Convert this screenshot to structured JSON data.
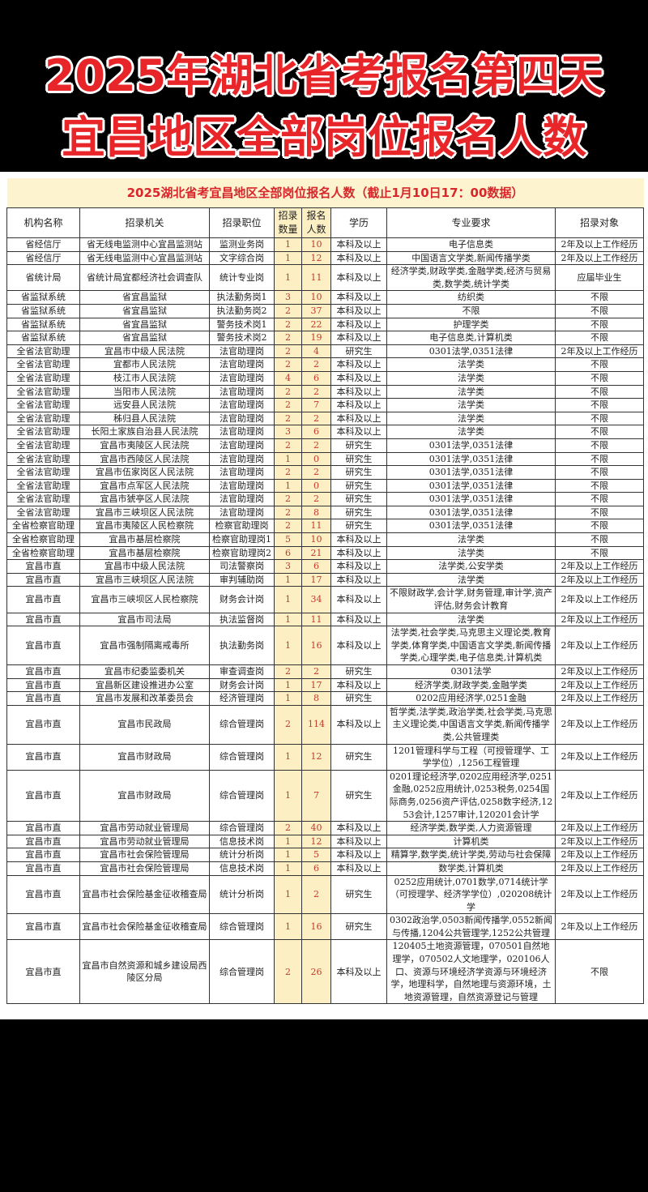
{
  "banner": {
    "line1": "2025年湖北省考报名第四天",
    "line2": "宜昌地区全部岗位报名人数"
  },
  "table": {
    "title": "2025湖北省考宜昌地区全部岗位报名人数（截止1月10日17：00数据）",
    "headers": [
      "机构名称",
      "招录机关",
      "招录职位",
      "招录数量",
      "报名人数",
      "学历",
      "专业要求",
      "招录对象"
    ],
    "rows": [
      [
        "省经信厅",
        "省无线电监测中心宜昌监测站",
        "监测业务岗",
        "1",
        "10",
        "本科及以上",
        "电子信息类",
        "2年及以上工作经历"
      ],
      [
        "省经信厅",
        "省无线电监测中心宜昌监测站",
        "文字综合岗",
        "1",
        "12",
        "本科及以上",
        "中国语言文学类,新闻传播学类",
        "2年及以上工作经历"
      ],
      [
        "省统计局",
        "省统计局宜都经济社会调查队",
        "统计专业岗",
        "1",
        "11",
        "本科及以上",
        "经济学类,财政学类,金融学类,经济与贸易类,数学类,统计学类",
        "应届毕业生"
      ],
      [
        "省监狱系统",
        "省宜昌监狱",
        "执法勤务岗1",
        "3",
        "10",
        "本科及以上",
        "纺织类",
        "不限"
      ],
      [
        "省监狱系统",
        "省宜昌监狱",
        "执法勤务岗2",
        "2",
        "37",
        "本科及以上",
        "不限",
        "不限"
      ],
      [
        "省监狱系统",
        "省宜昌监狱",
        "警务技术岗1",
        "2",
        "22",
        "本科及以上",
        "护理学类",
        "不限"
      ],
      [
        "省监狱系统",
        "省宜昌监狱",
        "警务技术岗2",
        "2",
        "19",
        "本科及以上",
        "电子信息类,计算机类",
        "不限"
      ],
      [
        "全省法官助理",
        "宜昌市中级人民法院",
        "法官助理岗",
        "2",
        "4",
        "研究生",
        "0301法学,0351法律",
        "2年及以上工作经历"
      ],
      [
        "全省法官助理",
        "宜都市人民法院",
        "法官助理岗",
        "2",
        "2",
        "本科及以上",
        "法学类",
        "不限"
      ],
      [
        "全省法官助理",
        "枝江市人民法院",
        "法官助理岗",
        "4",
        "6",
        "本科及以上",
        "法学类",
        "不限"
      ],
      [
        "全省法官助理",
        "当阳市人民法院",
        "法官助理岗",
        "2",
        "2",
        "本科及以上",
        "法学类",
        "不限"
      ],
      [
        "全省法官助理",
        "远安县人民法院",
        "法官助理岗",
        "2",
        "7",
        "本科及以上",
        "法学类",
        "不限"
      ],
      [
        "全省法官助理",
        "秭归县人民法院",
        "法官助理岗",
        "2",
        "2",
        "本科及以上",
        "法学类",
        "不限"
      ],
      [
        "全省法官助理",
        "长阳土家族自治县人民法院",
        "法官助理岗",
        "3",
        "6",
        "本科及以上",
        "法学类",
        "不限"
      ],
      [
        "全省法官助理",
        "宜昌市夷陵区人民法院",
        "法官助理岗",
        "2",
        "2",
        "研究生",
        "0301法学,0351法律",
        "不限"
      ],
      [
        "全省法官助理",
        "宜昌市西陵区人民法院",
        "法官助理岗",
        "1",
        "0",
        "研究生",
        "0301法学,0351法律",
        "不限"
      ],
      [
        "全省法官助理",
        "宜昌市伍家岗区人民法院",
        "法官助理岗",
        "2",
        "2",
        "研究生",
        "0301法学,0351法律",
        "不限"
      ],
      [
        "全省法官助理",
        "宜昌市点军区人民法院",
        "法官助理岗",
        "1",
        "0",
        "研究生",
        "0301法学,0351法律",
        "不限"
      ],
      [
        "全省法官助理",
        "宜昌市猇亭区人民法院",
        "法官助理岗",
        "2",
        "2",
        "研究生",
        "0301法学,0351法律",
        "不限"
      ],
      [
        "全省法官助理",
        "宜昌市三峡坝区人民法院",
        "法官助理岗",
        "2",
        "8",
        "研究生",
        "0301法学,0351法律",
        "不限"
      ],
      [
        "全省检察官助理",
        "宜昌市夷陵区人民检察院",
        "检察官助理岗",
        "2",
        "11",
        "研究生",
        "0301法学,0351法律",
        "不限"
      ],
      [
        "全省检察官助理",
        "宜昌市基层检察院",
        "检察官助理岗1",
        "5",
        "10",
        "本科及以上",
        "法学类",
        "不限"
      ],
      [
        "全省检察官助理",
        "宜昌市基层检察院",
        "检察官助理岗2",
        "6",
        "21",
        "本科及以上",
        "法学类",
        "不限"
      ],
      [
        "宜昌市直",
        "宜昌市中级人民法院",
        "司法警察岗",
        "3",
        "6",
        "本科及以上",
        "法学类,公安学类",
        "2年及以上工作经历"
      ],
      [
        "宜昌市直",
        "宜昌市三峡坝区人民法院",
        "审判辅助岗",
        "1",
        "17",
        "本科及以上",
        "法学类",
        "2年及以上工作经历"
      ],
      [
        "宜昌市直",
        "宜昌市三峡坝区人民检察院",
        "财务会计岗",
        "1",
        "34",
        "本科及以上",
        "不限财政学,会计学,财务管理,审计学,资产评估,财务会计教育",
        "2年及以上工作经历"
      ],
      [
        "宜昌市直",
        "宜昌市司法局",
        "执法监督岗",
        "1",
        "11",
        "本科及以上",
        "法学类",
        "2年及以上工作经历"
      ],
      [
        "宜昌市直",
        "宜昌市强制隔离戒毒所",
        "执法勤务岗",
        "1",
        "16",
        "本科及以上",
        "法学类,社会学类,马克思主义理论类,教育学类,体育学类,中国语言文学类,新闻传播学类,心理学类,电子信息类,计算机类",
        "2年及以上工作经历"
      ],
      [
        "宜昌市直",
        "宜昌市纪委监委机关",
        "审查调查岗",
        "2",
        "2",
        "研究生",
        "0301法学",
        "2年及以上工作经历"
      ],
      [
        "宜昌市直",
        "宜昌新区建设推进办公室",
        "财务会计岗",
        "1",
        "17",
        "本科及以上",
        "经济学类,财政学类,金融学类",
        "2年及以上工作经历"
      ],
      [
        "宜昌市直",
        "宜昌市发展和改革委员会",
        "经济管理岗",
        "1",
        "8",
        "研究生",
        "0202应用经济学,0251金融",
        "2年及以上工作经历"
      ],
      [
        "宜昌市直",
        "宜昌市民政局",
        "综合管理岗",
        "2",
        "114",
        "本科及以上",
        "哲学类,法学类,政治学类,社会学类,马克思主义理论类,中国语言文学类,新闻传播学类,公共管理类",
        "2年及以上工作经历"
      ],
      [
        "宜昌市直",
        "宜昌市财政局",
        "综合管理岗",
        "1",
        "12",
        "研究生",
        "1201管理科学与工程（可授管理学、工学学位）,1256工程管理",
        "2年及以上工作经历"
      ],
      [
        "宜昌市直",
        "宜昌市财政局",
        "综合管理岗",
        "1",
        "7",
        "研究生",
        "0201理论经济学,0202应用经济学,0251金融,0252应用统计,0253税务,0254国际商务,0256资产评估,0258数字经济,1253会计,1257审计,120201会计学",
        "2年及以上工作经历"
      ],
      [
        "宜昌市直",
        "宜昌市劳动就业管理局",
        "综合管理岗",
        "2",
        "40",
        "本科及以上",
        "经济学类,数学类,人力资源管理",
        "2年及以上工作经历"
      ],
      [
        "宜昌市直",
        "宜昌市劳动就业管理局",
        "信息技术岗",
        "1",
        "12",
        "本科及以上",
        "计算机类",
        "2年及以上工作经历"
      ],
      [
        "宜昌市直",
        "宜昌市社会保险管理局",
        "统计分析岗",
        "1",
        "5",
        "本科及以上",
        "精算学,数学类,统计学类,劳动与社会保障",
        "2年及以上工作经历"
      ],
      [
        "宜昌市直",
        "宜昌市社会保险管理局",
        "信息技术岗",
        "1",
        "6",
        "本科及以上",
        "数学类,计算机类",
        "2年及以上工作经历"
      ],
      [
        "宜昌市直",
        "宜昌市社会保险基金征收稽查局",
        "统计分析岗",
        "1",
        "2",
        "研究生",
        "0252应用统计,0701数学,0714统计学（可授理学、经济学学位）,020208统计学",
        "2年及以上工作经历"
      ],
      [
        "宜昌市直",
        "宜昌市社会保险基金征收稽查局",
        "综合管理岗",
        "1",
        "16",
        "研究生",
        "0302政治学,0503新闻传播学,0552新闻与传播,1204公共管理学,1252公共管理",
        "2年及以上工作经历"
      ],
      [
        "宜昌市直",
        "宜昌市自然资源和城乡建设局西陵区分局",
        "综合管理岗",
        "2",
        "26",
        "本科及以上",
        "120405土地资源管理，070501自然地理学，070502人文地理学，020106人口、资源与环境经济学资源与环境经济学，地理科学，自然地理与资源环境，土地资源管理，自然资源登记与管理",
        "不限"
      ]
    ]
  },
  "colors": {
    "title_red": "#e8262a",
    "number_red": "#c23b2b",
    "number_bg": "#fcefc4",
    "title_bg": "#fdf3cf"
  }
}
